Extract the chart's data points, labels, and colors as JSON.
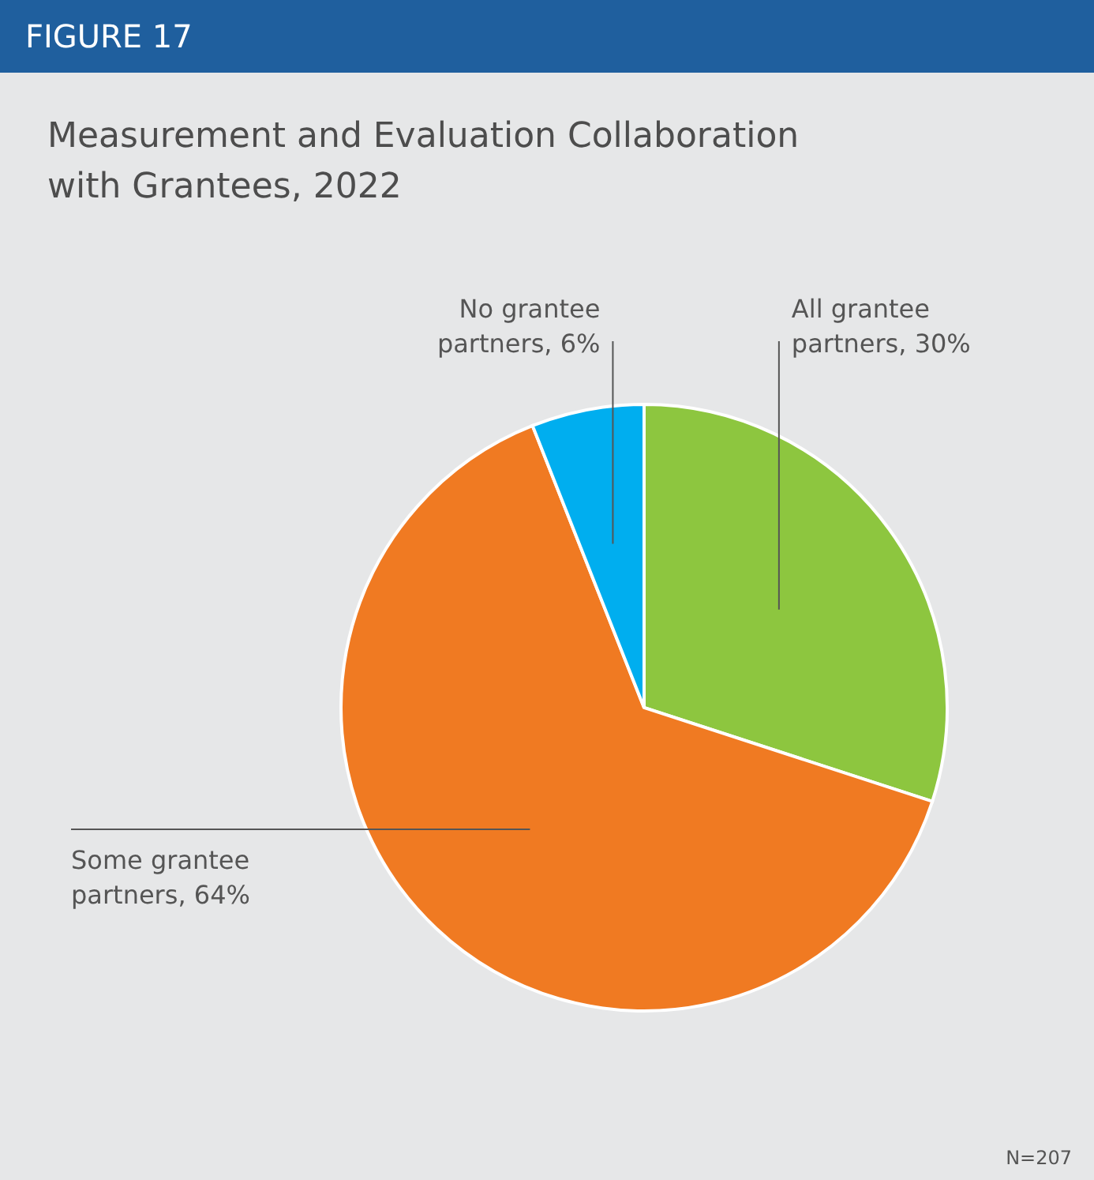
{
  "chart_data": {
    "type": "pie",
    "title": "Measurement and Evaluation Collaboration\nwith Grantees, 2022",
    "categories": [
      "All grantee partners",
      "Some grantee partners",
      "No grantee partners"
    ],
    "values": [
      30,
      64,
      6
    ],
    "colors": [
      "#8dc63f",
      "#f07a22",
      "#00aeef"
    ],
    "value_labels": [
      "30%",
      "64%",
      "6%"
    ],
    "annotations": [
      "FIGURE 17",
      "N=207"
    ]
  }
}
